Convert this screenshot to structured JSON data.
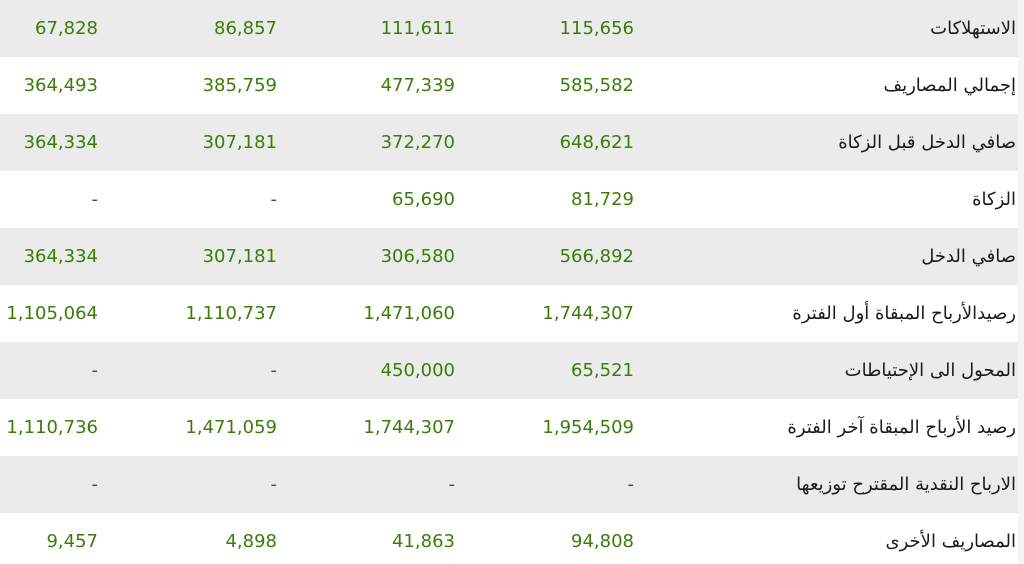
{
  "rows": [
    {
      "label": "الاستهلاكات",
      "values": [
        "115,656",
        "111,611",
        "86,857",
        "67,828"
      ]
    },
    {
      "label": "إجمالي المصاريف",
      "values": [
        "585,582",
        "477,339",
        "385,759",
        "364,493"
      ]
    },
    {
      "label": "صافي الدخل قبل الزكاة",
      "values": [
        "648,621",
        "372,270",
        "307,181",
        "364,334"
      ]
    },
    {
      "label": "الزكاة",
      "values": [
        "81,729",
        "65,690",
        "-",
        "-"
      ]
    },
    {
      "label": "صافي الدخل",
      "values": [
        "566,892",
        "306,580",
        "307,181",
        "364,334"
      ]
    },
    {
      "label": "رصيدالأرباح المبقاة أول الفترة",
      "values": [
        "1,744,307",
        "1,471,060",
        "1,110,737",
        "1,105,064"
      ]
    },
    {
      "label": "المحول الى الإحتياطات",
      "values": [
        "65,521",
        "450,000",
        "-",
        "-"
      ]
    },
    {
      "label": "رصيد الأرباح المبقاة آخر الفترة",
      "values": [
        "1,954,509",
        "1,744,307",
        "1,471,059",
        "1,110,736"
      ]
    },
    {
      "label": "الارباح النقدية المقترح توزيعها",
      "values": [
        "-",
        "-",
        "-",
        "-"
      ]
    },
    {
      "label": "المصاريف الأخرى",
      "values": [
        "94,808",
        "41,863",
        "4,898",
        "9,457"
      ]
    }
  ],
  "colors": {
    "value_green": "#3a7d0a",
    "dash_gray": "#4a4a4a",
    "row_shade": "#ebebeb",
    "row_white": "#ffffff"
  }
}
